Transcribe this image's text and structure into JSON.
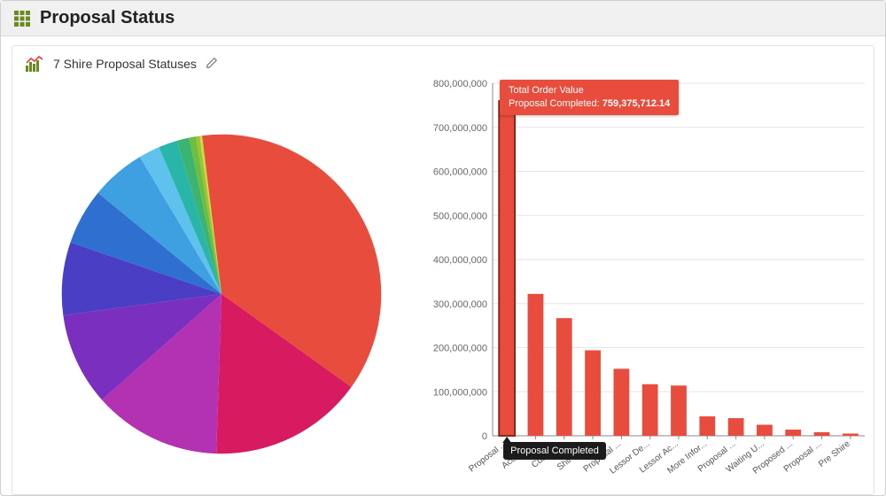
{
  "header": {
    "title": "Proposal Status"
  },
  "panel": {
    "title": "7 Shire Proposal Statuses"
  },
  "pie_chart": {
    "type": "pie",
    "background_color": "#ffffff",
    "radius": 185,
    "slices": [
      {
        "label": "Proposal Completed",
        "value": 759375712.14,
        "color": "#e74c3c"
      },
      {
        "label": "Accepte...",
        "value": 322000000,
        "color": "#d81b60"
      },
      {
        "label": "Custom...",
        "value": 267000000,
        "color": "#b232b2"
      },
      {
        "label": "Shire Re...",
        "value": 194000000,
        "color": "#7b2fbf"
      },
      {
        "label": "Proposal ...",
        "value": 152000000,
        "color": "#4a3fc4"
      },
      {
        "label": "Lessor De...",
        "value": 117000000,
        "color": "#2f6fd0"
      },
      {
        "label": "Lessor Ac...",
        "value": 114000000,
        "color": "#3ea0e0"
      },
      {
        "label": "More Infor...",
        "value": 44000000,
        "color": "#5fc2ee"
      },
      {
        "label": "Proposal ...",
        "value": 40000000,
        "color": "#29b6a8"
      },
      {
        "label": "Waiting U...",
        "value": 25000000,
        "color": "#3cb371"
      },
      {
        "label": "Proposed ...",
        "value": 14000000,
        "color": "#6cbf3c"
      },
      {
        "label": "Proposal ...",
        "value": 8000000,
        "color": "#9ac23c"
      },
      {
        "label": "Pre Shire",
        "value": 5000000,
        "color": "#cddc39"
      }
    ]
  },
  "bar_chart": {
    "type": "bar",
    "tooltip": {
      "title": "Total Order Value",
      "label": "Proposal Completed:",
      "value": "759,375,712.14"
    },
    "highlighted_index": 0,
    "highlighted_axis_tooltip": "Proposal Completed",
    "bar_color": "#e74c3c",
    "highlight_border_color": "#8a2615",
    "grid_color": "#e6e6e6",
    "axis_color": "#888888",
    "label_color": "#666666",
    "ylim": [
      0,
      800000000
    ],
    "ytick_step": 100000000,
    "ytick_labels": [
      "0",
      "100,000,000",
      "200,000,000",
      "300,000,000",
      "400,000,000",
      "500,000,000",
      "600,000,000",
      "700,000,000",
      "800,000,000"
    ],
    "label_fontsize": 11,
    "xlabel_fontsize": 10,
    "categories": [
      "Proposal ...",
      "Accepte...",
      "Custom...",
      "Shire Re...",
      "Proposal ...",
      "Lessor De...",
      "Lessor Ac...",
      "More Infor...",
      "Proposal ...",
      "Waiting U...",
      "Proposed ...",
      "Proposal ...",
      "Pre Shire"
    ],
    "values": [
      759375712.14,
      322000000,
      267000000,
      194000000,
      152000000,
      117000000,
      114000000,
      44000000,
      40000000,
      25000000,
      14000000,
      8000000,
      5000000
    ]
  }
}
